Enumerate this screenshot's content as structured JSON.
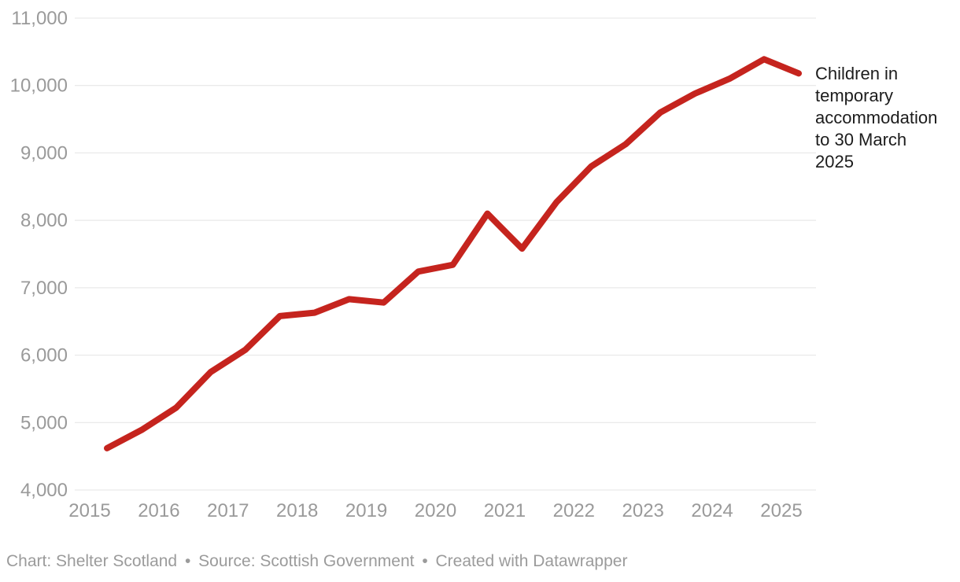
{
  "chart_data": {
    "type": "line",
    "grid": true,
    "legend": "none",
    "title": "",
    "xlabel": "",
    "ylabel": "",
    "ylim": [
      4000,
      11000
    ],
    "xlim": [
      2014.78,
      2025.5
    ],
    "y_ticks": [
      4000,
      5000,
      6000,
      7000,
      8000,
      9000,
      10000,
      11000
    ],
    "y_tick_labels": [
      "4,000",
      "5,000",
      "6,000",
      "7,000",
      "8,000",
      "9,000",
      "10,000",
      "11,000"
    ],
    "x_ticks": [
      2015,
      2016,
      2017,
      2018,
      2019,
      2020,
      2021,
      2022,
      2023,
      2024,
      2025
    ],
    "x_tick_labels": [
      "2015",
      "2016",
      "2017",
      "2018",
      "2019",
      "2020",
      "2021",
      "2022",
      "2023",
      "2024",
      "2025"
    ],
    "series": [
      {
        "name": "Children in temporary accommodation",
        "color": "#c5241e",
        "x": [
          2015.25,
          2015.75,
          2016.25,
          2016.75,
          2017.25,
          2017.75,
          2018.25,
          2018.75,
          2019.25,
          2019.75,
          2020.25,
          2020.75,
          2021.25,
          2021.75,
          2022.25,
          2022.75,
          2023.25,
          2023.75,
          2024.25,
          2024.75,
          2025.25
        ],
        "values": [
          4620,
          4890,
          5220,
          5750,
          6080,
          6580,
          6630,
          6830,
          6780,
          7240,
          7340,
          8100,
          7580,
          8270,
          8800,
          9130,
          9600,
          9880,
          10100,
          10390,
          10180
        ]
      }
    ],
    "annotation": {
      "text": "Children in temporary accommodation to 30 March 2025",
      "color": "#1c1c1c"
    }
  },
  "footer": {
    "chart_credit": "Chart: Shelter Scotland",
    "source": "Source: Scottish Government",
    "created_with": "Created with Datawrapper",
    "separator": "•"
  },
  "colors": {
    "line": "#c5241e",
    "grid": "#e4e4e4",
    "axis_text": "#9a9a9a",
    "annotation_text": "#1c1c1c",
    "footer_text": "#9b9b9b",
    "background": "#ffffff"
  }
}
